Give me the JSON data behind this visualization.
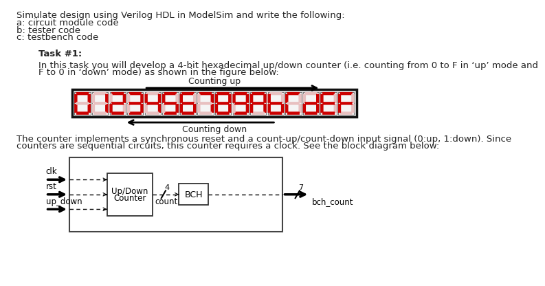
{
  "title_lines": [
    "Simulate design using Verilog HDL in ModelSim and write the following:",
    "a: circuit module code",
    "b: tester code",
    "c: testbench code"
  ],
  "task_header": "Task #1:",
  "task_body_line1": "In this task you will develop a 4-bit hexadecimal up/down counter (i.e. counting from 0 to F in ‘up’ mode and",
  "task_body_line2": "F to 0 in ‘down’ mode) as shown in the figure below:",
  "counting_up_label": "Counting up",
  "counting_down_label": "Counting down",
  "hex_digits": [
    "0",
    "1",
    "2",
    "3",
    "4",
    "5",
    "6",
    "7",
    "8",
    "9",
    "A",
    "b",
    "C",
    "d",
    "E",
    "F"
  ],
  "counter_body_line1": "The counter implements a synchronous reset and a count-up/count-down input signal (0:up, 1:down). Since",
  "counter_body_line2": "counters are sequential circuits, this counter requires a clock. See the block diagram below:",
  "seg_active_color": "#cc0000",
  "seg_inactive_color": "#e8c0c0",
  "outer_box_color": "#111111",
  "inputs": [
    "clk",
    "rst",
    "up_down"
  ],
  "box1_label": [
    "Up/Down",
    "Counter"
  ],
  "box2_label": "BCH",
  "wire1_label": "count",
  "wire1_bits": "4",
  "wire2_bits": "7",
  "output_label": "bch_count",
  "text_color": "#222222",
  "font_size": 9.5
}
